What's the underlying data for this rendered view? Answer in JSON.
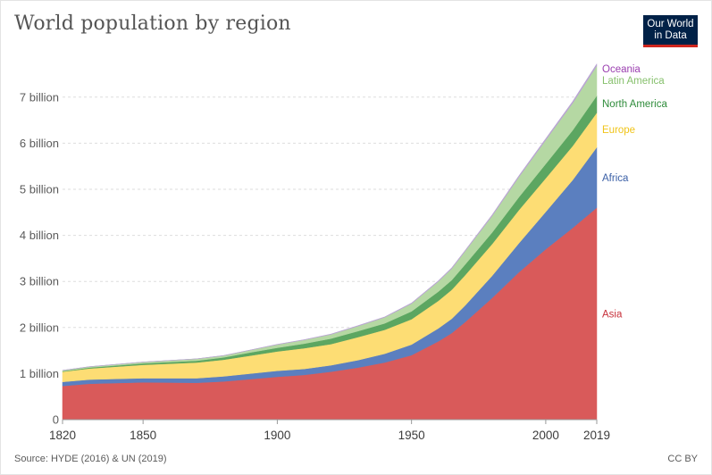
{
  "header": {
    "title": "World population by region",
    "logo_line1": "Our World",
    "logo_line2": "in Data"
  },
  "footer": {
    "source": "Source: HYDE (2016) & UN (2019)",
    "license": "CC BY"
  },
  "colors": {
    "Asia": "#d95a5a",
    "Africa": "#5b7fbf",
    "Europe": "#fddd74",
    "North America": "#5ca661",
    "Latin America": "#b5d8a3",
    "Oceania": "#b9a3d4",
    "Asia_label": "#c7303a",
    "Africa_label": "#3a5fa6",
    "Europe_label": "#f0c419",
    "North America_label": "#2e8b3a",
    "Latin America_label": "#86c06c",
    "Oceania_label": "#9b3fb0"
  },
  "chart_data": {
    "type": "area",
    "stacked": true,
    "title": "World population by region",
    "x": [
      1820,
      1830,
      1850,
      1870,
      1880,
      1890,
      1900,
      1910,
      1920,
      1930,
      1940,
      1950,
      1960,
      1965,
      1970,
      1980,
      1990,
      2000,
      2010,
      2019
    ],
    "series": [
      {
        "name": "Asia",
        "values": [
          0.73,
          0.78,
          0.81,
          0.8,
          0.83,
          0.88,
          0.93,
          0.97,
          1.04,
          1.13,
          1.24,
          1.4,
          1.7,
          1.88,
          2.12,
          2.64,
          3.2,
          3.7,
          4.16,
          4.6
        ]
      },
      {
        "name": "Africa",
        "values": [
          0.09,
          0.09,
          0.09,
          0.1,
          0.11,
          0.12,
          0.13,
          0.13,
          0.14,
          0.16,
          0.19,
          0.23,
          0.28,
          0.31,
          0.36,
          0.48,
          0.63,
          0.81,
          1.04,
          1.31
        ]
      },
      {
        "name": "Europe",
        "values": [
          0.22,
          0.24,
          0.29,
          0.34,
          0.36,
          0.39,
          0.42,
          0.45,
          0.46,
          0.5,
          0.52,
          0.55,
          0.6,
          0.63,
          0.66,
          0.69,
          0.72,
          0.73,
          0.74,
          0.75
        ]
      },
      {
        "name": "North America",
        "values": [
          0.01,
          0.02,
          0.03,
          0.04,
          0.05,
          0.07,
          0.08,
          0.1,
          0.12,
          0.13,
          0.14,
          0.17,
          0.2,
          0.21,
          0.23,
          0.25,
          0.28,
          0.31,
          0.34,
          0.37
        ]
      },
      {
        "name": "Latin America",
        "values": [
          0.02,
          0.02,
          0.03,
          0.04,
          0.04,
          0.05,
          0.07,
          0.08,
          0.09,
          0.11,
          0.13,
          0.17,
          0.22,
          0.25,
          0.29,
          0.36,
          0.44,
          0.52,
          0.59,
          0.65
        ]
      },
      {
        "name": "Oceania",
        "values": [
          0.002,
          0.002,
          0.002,
          0.002,
          0.003,
          0.004,
          0.006,
          0.007,
          0.008,
          0.01,
          0.011,
          0.013,
          0.016,
          0.018,
          0.019,
          0.023,
          0.027,
          0.031,
          0.037,
          0.042
        ]
      }
    ],
    "xlim": [
      1820,
      2019
    ],
    "ylim": [
      0,
      7.7
    ],
    "y_ticks": [
      {
        "value": 0,
        "label": "0"
      },
      {
        "value": 1,
        "label": "1 billion"
      },
      {
        "value": 2,
        "label": "2 billion"
      },
      {
        "value": 3,
        "label": "3 billion"
      },
      {
        "value": 4,
        "label": "4 billion"
      },
      {
        "value": 5,
        "label": "5 billion"
      },
      {
        "value": 6,
        "label": "6 billion"
      },
      {
        "value": 7,
        "label": "7 billion"
      }
    ],
    "x_ticks": [
      {
        "value": 1820,
        "label": "1820"
      },
      {
        "value": 1850,
        "label": "1850"
      },
      {
        "value": 1900,
        "label": "1900"
      },
      {
        "value": 1950,
        "label": "1950"
      },
      {
        "value": 2000,
        "label": "2000"
      },
      {
        "value": 2019,
        "label": "2019"
      }
    ],
    "grid": "horizontal dashed",
    "legend": "right (labels at end of series)"
  }
}
